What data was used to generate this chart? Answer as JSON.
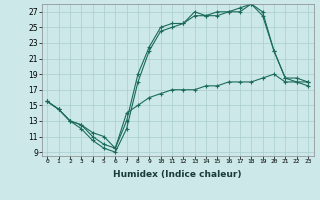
{
  "xlabel": "Humidex (Indice chaleur)",
  "bg_color": "#cce8e8",
  "line_color": "#1a6b5a",
  "grid_color": "#aacece",
  "xlim": [
    -0.5,
    23.5
  ],
  "ylim": [
    8.5,
    28
  ],
  "yticks": [
    9,
    11,
    13,
    15,
    17,
    19,
    21,
    23,
    25,
    27
  ],
  "xticks": [
    0,
    1,
    2,
    3,
    4,
    5,
    6,
    7,
    8,
    9,
    10,
    11,
    12,
    13,
    14,
    15,
    16,
    17,
    18,
    19,
    20,
    21,
    22,
    23
  ],
  "lines": [
    {
      "x": [
        0,
        1,
        2,
        3,
        4,
        5,
        6,
        7,
        8,
        9,
        10,
        11,
        12,
        13,
        14,
        15,
        16,
        17,
        18,
        19,
        20,
        21,
        22,
        23
      ],
      "y": [
        15.5,
        14.5,
        13.0,
        12.0,
        10.5,
        9.5,
        9.0,
        12.0,
        18.0,
        22.0,
        24.5,
        25.0,
        25.5,
        26.5,
        26.5,
        26.5,
        27.0,
        27.0,
        28.0,
        26.5,
        22.0,
        18.5,
        18.0,
        18.0
      ]
    },
    {
      "x": [
        0,
        1,
        2,
        3,
        4,
        5,
        6,
        7,
        8,
        9,
        10,
        11,
        12,
        13,
        14,
        15,
        16,
        17,
        18,
        19,
        20,
        21,
        22,
        23
      ],
      "y": [
        15.5,
        14.5,
        13.0,
        12.5,
        11.0,
        10.0,
        9.5,
        13.0,
        19.0,
        22.5,
        25.0,
        25.5,
        25.5,
        27.0,
        26.5,
        27.0,
        27.0,
        27.5,
        28.0,
        27.0,
        22.0,
        18.5,
        18.5,
        18.0
      ]
    },
    {
      "x": [
        0,
        1,
        2,
        3,
        4,
        5,
        6,
        7,
        8,
        9,
        10,
        11,
        12,
        13,
        14,
        15,
        16,
        17,
        18,
        19,
        20,
        21,
        22,
        23
      ],
      "y": [
        15.5,
        14.5,
        13.0,
        12.5,
        11.5,
        11.0,
        9.5,
        14.0,
        15.0,
        16.0,
        16.5,
        17.0,
        17.0,
        17.0,
        17.5,
        17.5,
        18.0,
        18.0,
        18.0,
        18.5,
        19.0,
        18.0,
        18.0,
        17.5
      ]
    }
  ]
}
